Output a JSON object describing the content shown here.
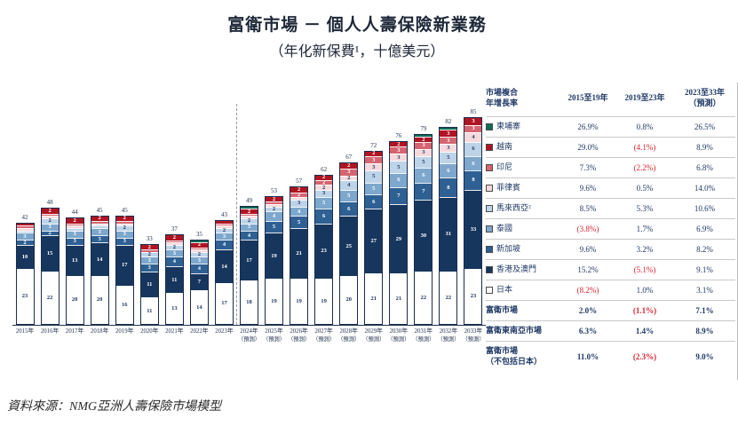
{
  "title": "富衛市場 － 個人人壽保險新業務",
  "subtitle": "（年化新保費¹，十億美元）",
  "source": "資料來源：NMG亞洲人壽保險市場模型",
  "chart_data": {
    "type": "bar",
    "stacked": true,
    "unit": "十億美元（年化新保費）",
    "forecast_label": "（預測）",
    "forecast_from_index": 9,
    "categories": [
      "2015年",
      "2016年",
      "2017年",
      "2018年",
      "2019年",
      "2020年",
      "2021年",
      "2022年",
      "2023年",
      "2024年",
      "2025年",
      "2026年",
      "2027年",
      "2028年",
      "2029年",
      "2030年",
      "2031年",
      "2032年",
      "2033年"
    ],
    "totals": [
      42,
      48,
      44,
      45,
      45,
      33,
      37,
      35,
      43,
      49,
      53,
      57,
      62,
      67,
      72,
      76,
      79,
      82,
      85
    ],
    "series": [
      {
        "name": "日本",
        "color": "#ffffff",
        "label_color": "#1f3864",
        "values": [
          23,
          22,
          20,
          20,
          16,
          11,
          13,
          14,
          17,
          18,
          19,
          19,
          19,
          20,
          21,
          21,
          22,
          22,
          23
        ]
      },
      {
        "name": "香港及澳門",
        "color": "#17365d",
        "label_color": "#ffffff",
        "values": [
          10,
          15,
          13,
          14,
          17,
          11,
          11,
          7,
          14,
          17,
          19,
          21,
          23,
          25,
          27,
          29,
          30,
          31,
          33
        ]
      },
      {
        "name": "新加坡",
        "color": "#2e6093",
        "label_color": "#ffffff",
        "values": [
          2,
          2,
          3,
          3,
          3,
          3,
          4,
          4,
          4,
          4,
          5,
          5,
          6,
          6,
          6,
          7,
          7,
          8,
          8
        ]
      },
      {
        "name": "泰國",
        "color": "#7da7cc",
        "label_color": "#ffffff",
        "values": [
          3,
          3,
          3,
          3,
          3,
          3,
          3,
          3,
          3,
          3,
          4,
          4,
          5,
          5,
          5,
          6,
          6,
          6,
          6
        ]
      },
      {
        "name": "馬來西亞",
        "color": "#bdd3e8",
        "label_color": "#1f3864",
        "values": [
          1,
          2,
          1,
          1,
          2,
          2,
          2,
          2,
          2,
          2,
          2,
          3,
          3,
          4,
          5,
          5,
          5,
          5,
          6
        ]
      },
      {
        "name": "菲律賓",
        "color": "#f5d9dc",
        "label_color": "#1f3864",
        "values": [
          1,
          1,
          1,
          1,
          1,
          0,
          1,
          1,
          1,
          1,
          1,
          1,
          2,
          2,
          3,
          3,
          3,
          3,
          4
        ]
      },
      {
        "name": "印尼",
        "color": "#d66470",
        "label_color": "#ffffff",
        "values": [
          1,
          1,
          1,
          1,
          1,
          1,
          1,
          1,
          1,
          1,
          1,
          2,
          2,
          3,
          3,
          3,
          3,
          3,
          3
        ]
      },
      {
        "name": "越南",
        "color": "#b01423",
        "label_color": "#ffffff",
        "values": [
          1,
          2,
          2,
          2,
          2,
          2,
          2,
          2,
          1,
          2,
          2,
          2,
          2,
          2,
          2,
          2,
          2,
          3,
          3
        ]
      },
      {
        "name": "柬埔寨",
        "color": "#0e6b58",
        "label_color": "#ffffff",
        "values": [
          0,
          0,
          0,
          0,
          0,
          0,
          0,
          1,
          0,
          1,
          0,
          0,
          0,
          0,
          0,
          0,
          1,
          1,
          0
        ]
      }
    ]
  },
  "table": {
    "header": {
      "col0": "市場複合\n年增長率",
      "col1": "2015至19年",
      "col2": "2019至23年",
      "col3": "2023至33年\n（預測）"
    },
    "rows": [
      {
        "label": "柬埔寨",
        "swatch": "#0e6b58",
        "v1": "26.9%",
        "v2": "0.8%",
        "v3": "26.5%"
      },
      {
        "label": "越南",
        "swatch": "#b01423",
        "v1": "29.0%",
        "v2": "(4.1%)",
        "v3": "8.9%"
      },
      {
        "label": "印尼",
        "swatch": "#d66470",
        "v1": "7.3%",
        "v2": "(2.2%)",
        "v3": "6.8%"
      },
      {
        "label": "菲律賓",
        "swatch": "#f5d9dc",
        "v1": "9.6%",
        "v2": "0.5%",
        "v3": "14.0%"
      },
      {
        "label": "馬來西亞²",
        "swatch": "#bdd3e8",
        "v1": "8.5%",
        "v2": "5.3%",
        "v3": "10.6%"
      },
      {
        "label": "泰國",
        "swatch": "#7da7cc",
        "v1": "(3.8%)",
        "v2": "1.7%",
        "v3": "6.9%"
      },
      {
        "label": "新加坡",
        "swatch": "#2e6093",
        "v1": "9.6%",
        "v2": "3.2%",
        "v3": "8.2%"
      },
      {
        "label": "香港及澳門",
        "swatch": "#17365d",
        "v1": "15.2%",
        "v2": "(5.1%)",
        "v3": "9.1%"
      },
      {
        "label": "日本",
        "swatch": "#ffffff",
        "v1": "(8.2%)",
        "v2": "1.0%",
        "v3": "3.1%"
      },
      {
        "label": "富衛市場",
        "bold": true,
        "v1": "2.0%",
        "v2": "(1.1%)",
        "v3": "7.1%"
      },
      {
        "label": "富衛東南亞市場",
        "bold": true,
        "v1": "6.3%",
        "v2": "1.4%",
        "v3": "8.9%"
      },
      {
        "label": "富衛市場\n（不包括日本）",
        "bold": true,
        "tall": true,
        "v1": "11.0%",
        "v2": "(2.3%)",
        "v3": "9.0%"
      }
    ]
  },
  "colors": {
    "text_navy": "#1f3864",
    "negative_red": "#d9232e",
    "axis": "#24344f"
  }
}
